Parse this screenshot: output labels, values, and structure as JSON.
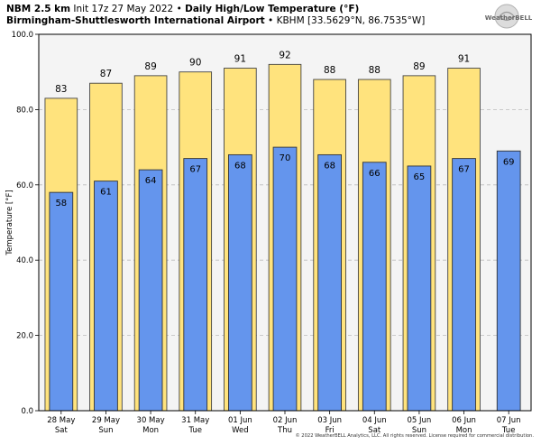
{
  "header": {
    "model": "NBM 2.5 km",
    "init": "Init 17z 27 May 2022",
    "bullet": "•",
    "product": "Daily High/Low Temperature (°F)",
    "station_name": "Birmingham-Shuttlesworth International Airport",
    "station_info": "KBHM [33.5629°N, 86.7535°W]"
  },
  "logo_text": "WeatherBELL",
  "credit": "© 2022 WeatherBELL Analytics, LLC. All rights reserved. License required for commercial distribution.",
  "colors": {
    "high": "#ffe37d",
    "low": "#6495ed",
    "plot_bg": "#f4f4f4",
    "grid": "#bbbbbb"
  },
  "chart_data": {
    "type": "bar",
    "ylabel": "Temperature [°F]",
    "ylim": [
      0,
      100
    ],
    "yticks": [
      "0.0",
      "20.0",
      "40.0",
      "60.0",
      "80.0",
      "100.0"
    ],
    "categories": [
      [
        "28 May",
        "Sat"
      ],
      [
        "29 May",
        "Sun"
      ],
      [
        "30 May",
        "Mon"
      ],
      [
        "31 May",
        "Tue"
      ],
      [
        "01 Jun",
        "Wed"
      ],
      [
        "02 Jun",
        "Thu"
      ],
      [
        "03 Jun",
        "Fri"
      ],
      [
        "04 Jun",
        "Sat"
      ],
      [
        "05 Jun",
        "Sun"
      ],
      [
        "06 Jun",
        "Mon"
      ],
      [
        "07 Jun",
        "Tue"
      ]
    ],
    "series": [
      {
        "values": [
          83,
          87,
          89,
          90,
          91,
          92,
          88,
          88,
          89,
          91,
          null
        ]
      },
      {
        "values": [
          58,
          61,
          64,
          67,
          68,
          70,
          68,
          66,
          65,
          67,
          69
        ]
      }
    ],
    "grid": true
  }
}
